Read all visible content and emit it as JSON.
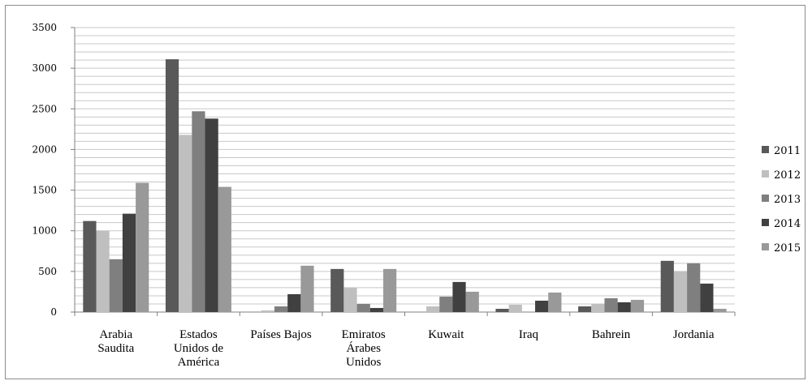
{
  "chart_data": {
    "type": "bar",
    "title": "",
    "xlabel": "",
    "ylabel": "",
    "ylim": [
      0,
      3500
    ],
    "yticks": [
      0,
      500,
      1000,
      1500,
      2000,
      2500,
      3000,
      3500
    ],
    "grid": true,
    "legend_position": "right",
    "categories": [
      [
        "Arabia",
        "Saudita"
      ],
      [
        "Estados",
        "Unidos de",
        "América"
      ],
      [
        "Países Bajos"
      ],
      [
        "Emiratos",
        "Árabes",
        "Unidos"
      ],
      [
        "Kuwait"
      ],
      [
        "Iraq"
      ],
      [
        "Bahrein"
      ],
      [
        "Jordania"
      ]
    ],
    "series": [
      {
        "name": "2011",
        "color": "#595959",
        "values": [
          1120,
          3110,
          0,
          530,
          0,
          40,
          70,
          630
        ]
      },
      {
        "name": "2012",
        "color": "#bfbfbf",
        "values": [
          1000,
          2180,
          20,
          300,
          70,
          90,
          100,
          500
        ]
      },
      {
        "name": "2013",
        "color": "#7f7f7f",
        "values": [
          650,
          2470,
          70,
          100,
          190,
          0,
          170,
          600
        ]
      },
      {
        "name": "2014",
        "color": "#404040",
        "values": [
          1210,
          2380,
          220,
          50,
          370,
          140,
          120,
          350
        ]
      },
      {
        "name": "2015",
        "color": "#999999",
        "values": [
          1590,
          1540,
          570,
          530,
          250,
          240,
          150,
          40
        ]
      }
    ]
  }
}
